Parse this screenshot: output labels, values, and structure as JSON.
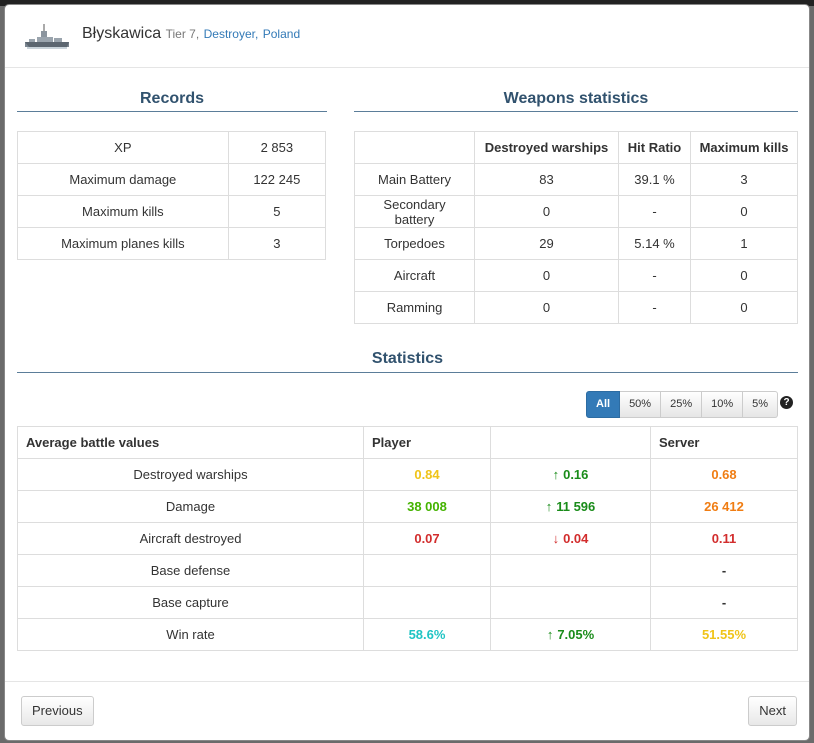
{
  "header": {
    "ship_name": "Błyskawica",
    "tier": "Tier 7,",
    "ship_type": "Destroyer,",
    "nation": "Poland",
    "ship_icon": "destroyer-ship-icon"
  },
  "records": {
    "title": "Records",
    "rows": [
      {
        "label": "XP",
        "value": "2 853"
      },
      {
        "label": "Maximum damage",
        "value": "122 245"
      },
      {
        "label": "Maximum kills",
        "value": "5"
      },
      {
        "label": "Maximum planes kills",
        "value": "3"
      }
    ]
  },
  "weapons": {
    "title": "Weapons statistics",
    "headers": [
      "",
      "Destroyed warships",
      "Hit Ratio",
      "Maximum kills"
    ],
    "rows": [
      {
        "weapon": "Main Battery",
        "destroyed": "83",
        "hit_ratio": "39.1 %",
        "max_kills": "3"
      },
      {
        "weapon": "Secondary battery",
        "destroyed": "0",
        "hit_ratio": "-",
        "max_kills": "0"
      },
      {
        "weapon": "Torpedoes",
        "destroyed": "29",
        "hit_ratio": "5.14 %",
        "max_kills": "1"
      },
      {
        "weapon": "Aircraft",
        "destroyed": "0",
        "hit_ratio": "-",
        "max_kills": "0"
      },
      {
        "weapon": "Ramming",
        "destroyed": "0",
        "hit_ratio": "-",
        "max_kills": "0"
      }
    ]
  },
  "statistics": {
    "title": "Statistics",
    "filters": [
      "All",
      "50%",
      "25%",
      "10%",
      "5%"
    ],
    "active_filter": "All",
    "help_icon": "question-circle-icon",
    "headers": {
      "label": "Average battle values",
      "player": "Player",
      "diff": "",
      "server": "Server"
    },
    "rows": [
      {
        "label": "Destroyed warships",
        "player": "0.84",
        "diff_arrow": "↑",
        "diff": "0.16",
        "server": "0.68"
      },
      {
        "label": "Damage",
        "player": "38 008",
        "diff_arrow": "↑",
        "diff": "11 596",
        "server": "26 412"
      },
      {
        "label": "Aircraft destroyed",
        "player": "0.07",
        "diff_arrow": "↓",
        "diff": "0.04",
        "server": "0.11"
      },
      {
        "label": "Base defense",
        "player": "",
        "diff_arrow": "",
        "diff": "",
        "server": "-"
      },
      {
        "label": "Base capture",
        "player": "",
        "diff_arrow": "",
        "diff": "",
        "server": "-"
      },
      {
        "label": "Win rate",
        "player": "58.6%",
        "diff_arrow": "↑",
        "diff": "7.05%",
        "server": "51.55%"
      }
    ],
    "colors": {
      "yellow": "#f0c419",
      "orange": "#f07d13",
      "green": "#44b300",
      "dark_green": "#1a8c1a",
      "red": "#d22d2d",
      "cyan": "#20c4c4"
    }
  },
  "footer": {
    "previous_label": "Previous",
    "next_label": "Next"
  }
}
